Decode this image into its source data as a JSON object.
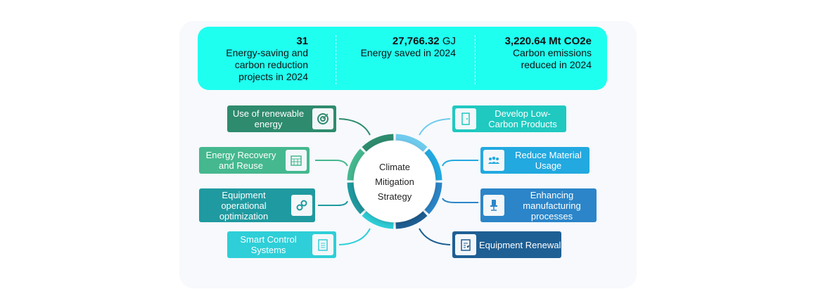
{
  "stats": [
    {
      "value": "31",
      "unit": "",
      "label": "Energy-saving and carbon reduction projects in 2024"
    },
    {
      "value": "27,766.32",
      "unit": "GJ",
      "label": "Energy saved in 2024"
    },
    {
      "value": "3,220.64 Mt CO2e",
      "unit": "",
      "label": "Carbon emissions reduced in 2024"
    }
  ],
  "center": {
    "title": "Climate Mitigation Strategy"
  },
  "left_items": [
    {
      "label": "Use of renewable energy",
      "icon": "target-icon",
      "color": "#2e8b6e"
    },
    {
      "label": "Energy Recovery and Reuse",
      "icon": "calendar-icon",
      "color": "#45b88f"
    },
    {
      "label": "Equipment operational optimization",
      "icon": "gears-icon",
      "color": "#1f9aa0"
    },
    {
      "label": "Smart Control Systems",
      "icon": "clipboard-icon",
      "color": "#2ecfd8"
    }
  ],
  "right_items": [
    {
      "label": "Develop Low-Carbon Products",
      "icon": "door-icon",
      "color": "#1fc9c0"
    },
    {
      "label": "Reduce Material Usage",
      "icon": "people-icon",
      "color": "#22a9e0"
    },
    {
      "label": "Enhancing manufacturing processes",
      "icon": "chair-icon",
      "color": "#2b85c8"
    },
    {
      "label": "Equipment Renewal",
      "icon": "checklist-icon",
      "color": "#1e5f94"
    }
  ]
}
